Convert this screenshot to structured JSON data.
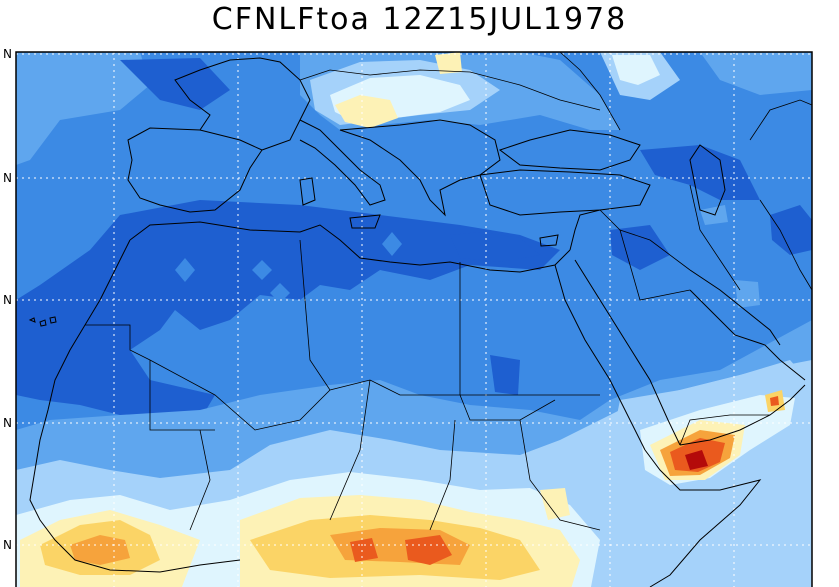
{
  "map": {
    "title": "CFNLFtoa 12Z15JUL1978",
    "lat_labels": [
      "N",
      "N",
      "N",
      "N",
      "N"
    ]
  },
  "colors": {
    "dark_blue": "#1e5fd0",
    "blue": "#3c8ae4",
    "medium_blue": "#5fa6ee",
    "light_blue": "#a5d2fa",
    "pale_cyan": "#dff5fe",
    "pale_yellow": "#fdf2b6",
    "yellow": "#fbd466",
    "orange": "#f6a33c",
    "red_orange": "#ea5a1e",
    "dark_red": "#b40a0a",
    "coast": "#000000",
    "grid": "#ffffff"
  }
}
